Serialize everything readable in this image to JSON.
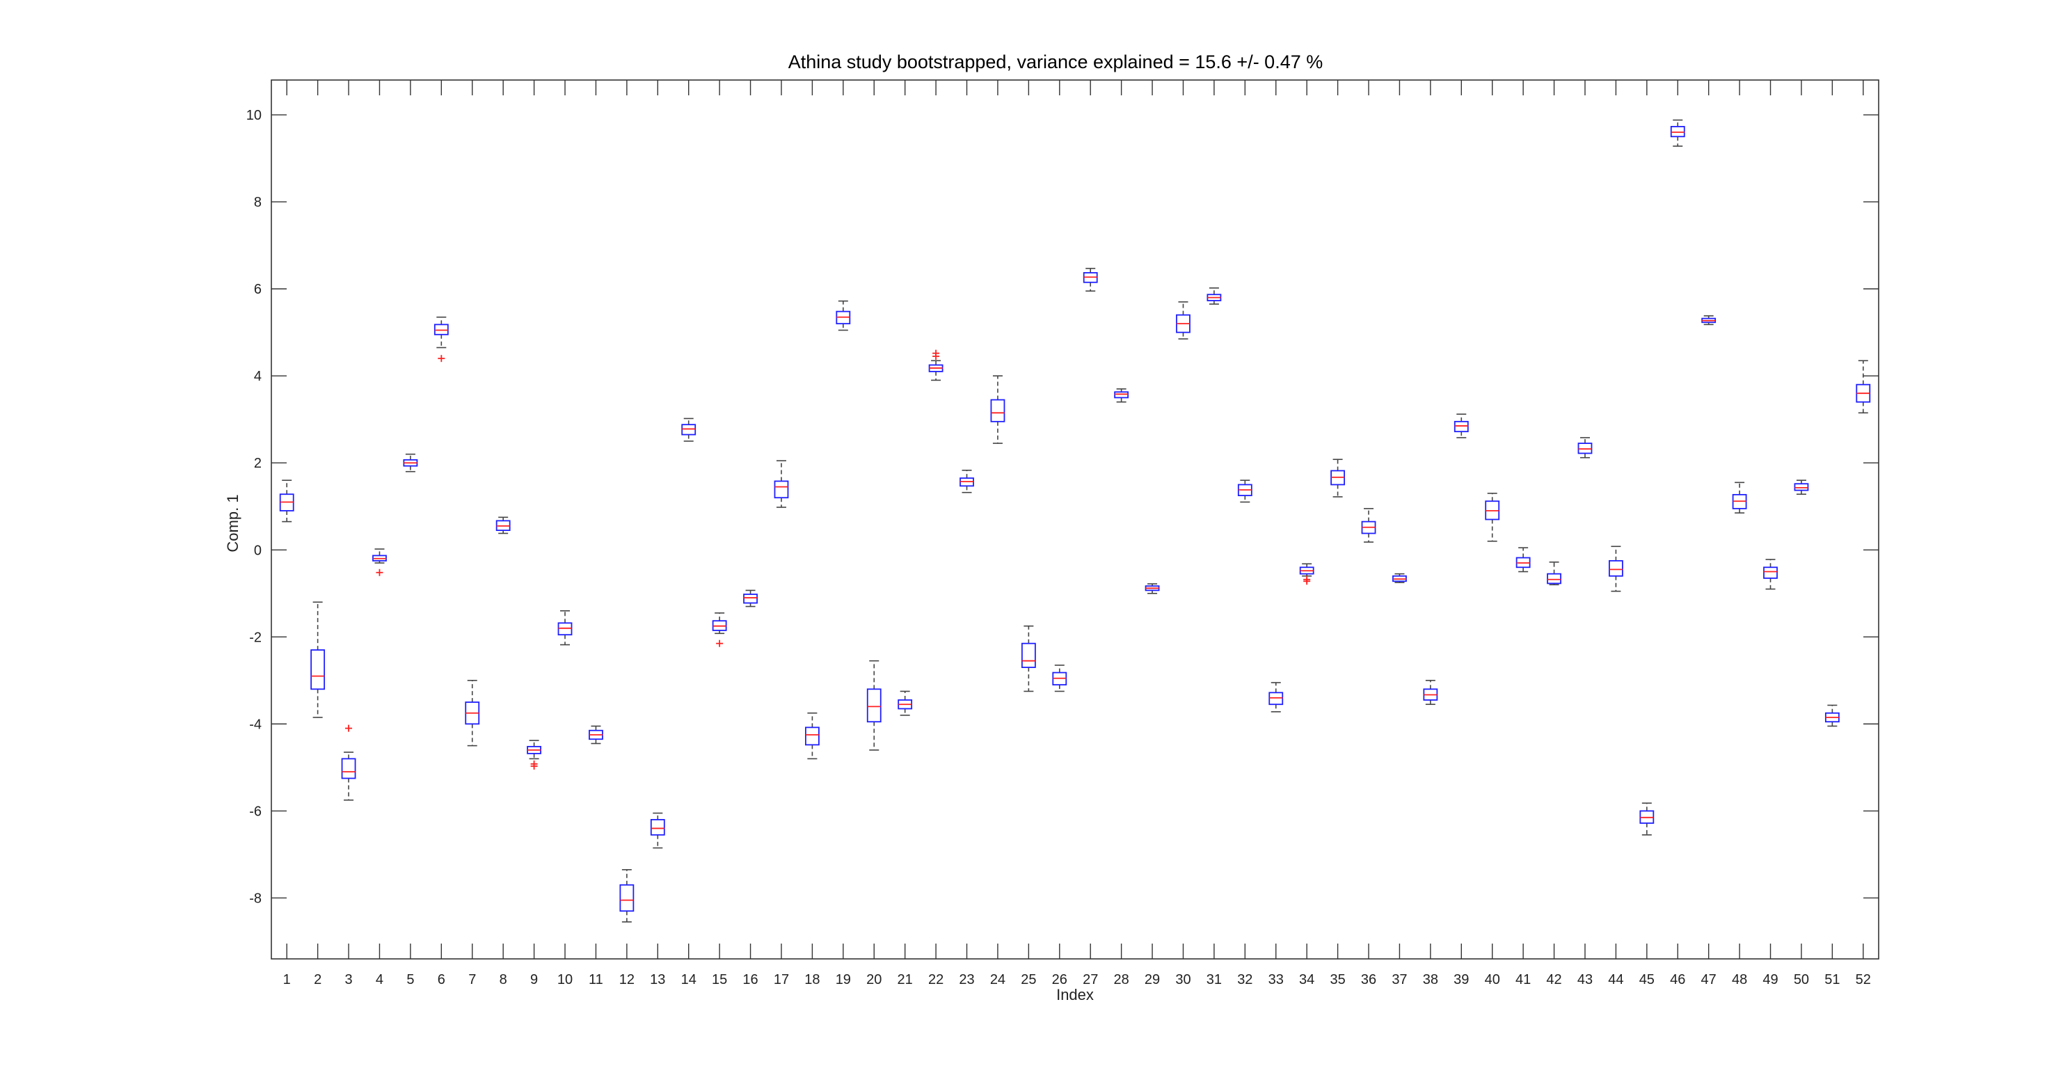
{
  "chart_data": {
    "type": "box",
    "title": "Athina study bootstrapped, variance explained = 15.6 +/- 0.47 %",
    "xlabel": "Index",
    "ylabel": "Comp. 1",
    "xlim": [
      0.5,
      52.5
    ],
    "ylim": [
      -9.4,
      10.8
    ],
    "yticks": [
      -8,
      -6,
      -4,
      -2,
      0,
      2,
      4,
      6,
      8,
      10
    ],
    "categories": [
      "1",
      "2",
      "3",
      "4",
      "5",
      "6",
      "7",
      "8",
      "9",
      "10",
      "11",
      "12",
      "13",
      "14",
      "15",
      "16",
      "17",
      "18",
      "19",
      "20",
      "21",
      "22",
      "23",
      "24",
      "25",
      "26",
      "27",
      "28",
      "29",
      "30",
      "31",
      "32",
      "33",
      "34",
      "35",
      "36",
      "37",
      "38",
      "39",
      "40",
      "41",
      "42",
      "43",
      "44",
      "45",
      "46",
      "47",
      "48",
      "49",
      "50",
      "51",
      "52"
    ],
    "grid": false,
    "colors": {
      "box": "#1f1fff",
      "median": "#ff2020",
      "whisker": "#444444",
      "outlier": "#ff2020",
      "axis": "#333333"
    },
    "boxes": [
      {
        "index": "1",
        "whisker_low": 0.65,
        "q1": 0.9,
        "median": 1.1,
        "q3": 1.28,
        "whisker_high": 1.6
      },
      {
        "index": "2",
        "whisker_low": -3.85,
        "q1": -3.2,
        "median": -2.9,
        "q3": -2.3,
        "whisker_high": -1.2
      },
      {
        "index": "3",
        "whisker_low": -5.75,
        "q1": -5.25,
        "median": -5.1,
        "q3": -4.8,
        "whisker_high": -4.65,
        "outliers": [
          -4.1
        ]
      },
      {
        "index": "4",
        "whisker_low": -0.3,
        "q1": -0.25,
        "median": -0.2,
        "q3": -0.13,
        "whisker_high": 0.02,
        "outliers": [
          -0.52
        ]
      },
      {
        "index": "5",
        "whisker_low": 1.8,
        "q1": 1.93,
        "median": 2.0,
        "q3": 2.07,
        "whisker_high": 2.2
      },
      {
        "index": "6",
        "whisker_low": 4.65,
        "q1": 4.95,
        "median": 5.05,
        "q3": 5.18,
        "whisker_high": 5.35,
        "outliers": [
          4.4
        ]
      },
      {
        "index": "7",
        "whisker_low": -4.5,
        "q1": -4.0,
        "median": -3.75,
        "q3": -3.5,
        "whisker_high": -3.0
      },
      {
        "index": "8",
        "whisker_low": 0.38,
        "q1": 0.45,
        "median": 0.55,
        "q3": 0.67,
        "whisker_high": 0.75
      },
      {
        "index": "9",
        "whisker_low": -4.8,
        "q1": -4.68,
        "median": -4.6,
        "q3": -4.52,
        "whisker_high": -4.38,
        "outliers": [
          -4.92,
          -4.97
        ]
      },
      {
        "index": "10",
        "whisker_low": -2.18,
        "q1": -1.95,
        "median": -1.8,
        "q3": -1.68,
        "whisker_high": -1.4
      },
      {
        "index": "11",
        "whisker_low": -4.45,
        "q1": -4.35,
        "median": -4.25,
        "q3": -4.15,
        "whisker_high": -4.05
      },
      {
        "index": "12",
        "whisker_low": -8.55,
        "q1": -8.3,
        "median": -8.05,
        "q3": -7.7,
        "whisker_high": -7.35
      },
      {
        "index": "13",
        "whisker_low": -6.85,
        "q1": -6.55,
        "median": -6.4,
        "q3": -6.2,
        "whisker_high": -6.05
      },
      {
        "index": "14",
        "whisker_low": 2.5,
        "q1": 2.65,
        "median": 2.78,
        "q3": 2.88,
        "whisker_high": 3.02
      },
      {
        "index": "15",
        "whisker_low": -1.92,
        "q1": -1.85,
        "median": -1.75,
        "q3": -1.63,
        "whisker_high": -1.45,
        "outliers": [
          -2.15
        ]
      },
      {
        "index": "16",
        "whisker_low": -1.3,
        "q1": -1.22,
        "median": -1.1,
        "q3": -1.02,
        "whisker_high": -0.93
      },
      {
        "index": "17",
        "whisker_low": 0.98,
        "q1": 1.2,
        "median": 1.45,
        "q3": 1.58,
        "whisker_high": 2.05
      },
      {
        "index": "18",
        "whisker_low": -4.8,
        "q1": -4.48,
        "median": -4.25,
        "q3": -4.08,
        "whisker_high": -3.75
      },
      {
        "index": "19",
        "whisker_low": 5.05,
        "q1": 5.2,
        "median": 5.35,
        "q3": 5.48,
        "whisker_high": 5.72
      },
      {
        "index": "20",
        "whisker_low": -4.6,
        "q1": -3.95,
        "median": -3.6,
        "q3": -3.2,
        "whisker_high": -2.55
      },
      {
        "index": "21",
        "whisker_low": -3.8,
        "q1": -3.65,
        "median": -3.55,
        "q3": -3.45,
        "whisker_high": -3.25
      },
      {
        "index": "22",
        "whisker_low": 3.9,
        "q1": 4.1,
        "median": 4.18,
        "q3": 4.25,
        "whisker_high": 4.35,
        "outliers": [
          4.45,
          4.52
        ]
      },
      {
        "index": "23",
        "whisker_low": 1.32,
        "q1": 1.47,
        "median": 1.57,
        "q3": 1.65,
        "whisker_high": 1.83
      },
      {
        "index": "24",
        "whisker_low": 2.45,
        "q1": 2.95,
        "median": 3.15,
        "q3": 3.45,
        "whisker_high": 4.0
      },
      {
        "index": "25",
        "whisker_low": -3.25,
        "q1": -2.7,
        "median": -2.55,
        "q3": -2.15,
        "whisker_high": -1.75
      },
      {
        "index": "26",
        "whisker_low": -3.25,
        "q1": -3.1,
        "median": -2.95,
        "q3": -2.82,
        "whisker_high": -2.65
      },
      {
        "index": "27",
        "whisker_low": 5.95,
        "q1": 6.15,
        "median": 6.27,
        "q3": 6.37,
        "whisker_high": 6.47
      },
      {
        "index": "28",
        "whisker_low": 3.4,
        "q1": 3.5,
        "median": 3.58,
        "q3": 3.63,
        "whisker_high": 3.7
      },
      {
        "index": "29",
        "whisker_low": -1.0,
        "q1": -0.93,
        "median": -0.88,
        "q3": -0.83,
        "whisker_high": -0.78
      },
      {
        "index": "30",
        "whisker_low": 4.85,
        "q1": 5.0,
        "median": 5.2,
        "q3": 5.4,
        "whisker_high": 5.7
      },
      {
        "index": "31",
        "whisker_low": 5.65,
        "q1": 5.73,
        "median": 5.8,
        "q3": 5.87,
        "whisker_high": 6.02
      },
      {
        "index": "32",
        "whisker_low": 1.1,
        "q1": 1.25,
        "median": 1.38,
        "q3": 1.5,
        "whisker_high": 1.6
      },
      {
        "index": "33",
        "whisker_low": -3.72,
        "q1": -3.55,
        "median": -3.4,
        "q3": -3.28,
        "whisker_high": -3.05
      },
      {
        "index": "34",
        "whisker_low": -0.6,
        "q1": -0.55,
        "median": -0.48,
        "q3": -0.4,
        "whisker_high": -0.32,
        "outliers": [
          -0.68,
          -0.72
        ]
      },
      {
        "index": "35",
        "whisker_low": 1.22,
        "q1": 1.5,
        "median": 1.67,
        "q3": 1.82,
        "whisker_high": 2.08
      },
      {
        "index": "36",
        "whisker_low": 0.18,
        "q1": 0.38,
        "median": 0.52,
        "q3": 0.65,
        "whisker_high": 0.95
      },
      {
        "index": "37",
        "whisker_low": -0.75,
        "q1": -0.72,
        "median": -0.67,
        "q3": -0.6,
        "whisker_high": -0.55
      },
      {
        "index": "38",
        "whisker_low": -3.55,
        "q1": -3.45,
        "median": -3.33,
        "q3": -3.2,
        "whisker_high": -3.0
      },
      {
        "index": "39",
        "whisker_low": 2.58,
        "q1": 2.72,
        "median": 2.85,
        "q3": 2.95,
        "whisker_high": 3.12
      },
      {
        "index": "40",
        "whisker_low": 0.2,
        "q1": 0.7,
        "median": 0.9,
        "q3": 1.12,
        "whisker_high": 1.3
      },
      {
        "index": "41",
        "whisker_low": -0.5,
        "q1": -0.4,
        "median": -0.3,
        "q3": -0.18,
        "whisker_high": 0.05
      },
      {
        "index": "42",
        "whisker_low": -0.8,
        "q1": -0.77,
        "median": -0.68,
        "q3": -0.55,
        "whisker_high": -0.28
      },
      {
        "index": "43",
        "whisker_low": 2.12,
        "q1": 2.22,
        "median": 2.32,
        "q3": 2.45,
        "whisker_high": 2.58
      },
      {
        "index": "44",
        "whisker_low": -0.95,
        "q1": -0.6,
        "median": -0.45,
        "q3": -0.25,
        "whisker_high": 0.08
      },
      {
        "index": "45",
        "whisker_low": -6.55,
        "q1": -6.28,
        "median": -6.15,
        "q3": -6.0,
        "whisker_high": -5.82
      },
      {
        "index": "46",
        "whisker_low": 9.28,
        "q1": 9.5,
        "median": 9.6,
        "q3": 9.73,
        "whisker_high": 9.88
      },
      {
        "index": "47",
        "whisker_low": 5.18,
        "q1": 5.23,
        "median": 5.27,
        "q3": 5.32,
        "whisker_high": 5.38
      },
      {
        "index": "48",
        "whisker_low": 0.85,
        "q1": 0.95,
        "median": 1.12,
        "q3": 1.27,
        "whisker_high": 1.55
      },
      {
        "index": "49",
        "whisker_low": -0.9,
        "q1": -0.65,
        "median": -0.5,
        "q3": -0.4,
        "whisker_high": -0.22
      },
      {
        "index": "50",
        "whisker_low": 1.28,
        "q1": 1.37,
        "median": 1.43,
        "q3": 1.52,
        "whisker_high": 1.6
      },
      {
        "index": "51",
        "whisker_low": -4.05,
        "q1": -3.95,
        "median": -3.85,
        "q3": -3.75,
        "whisker_high": -3.57
      },
      {
        "index": "52",
        "whisker_low": 3.15,
        "q1": 3.4,
        "median": 3.6,
        "q3": 3.8,
        "whisker_high": 4.35
      }
    ]
  }
}
